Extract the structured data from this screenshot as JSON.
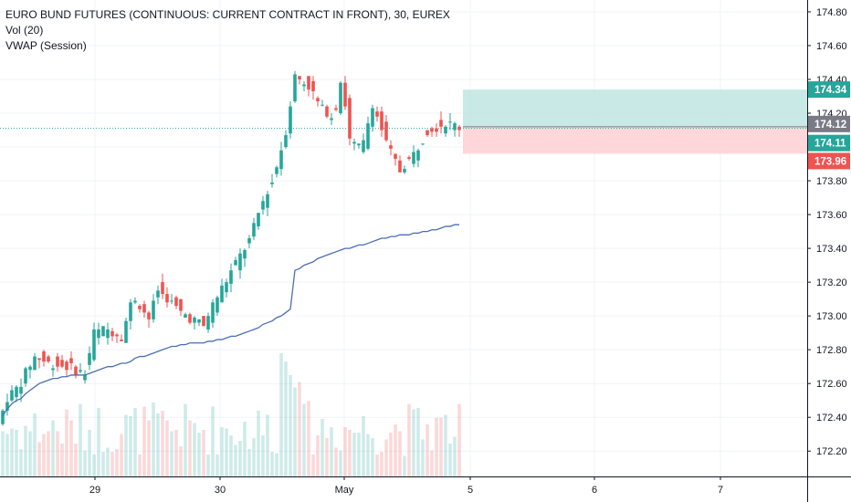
{
  "legend": {
    "title": "EURO BUND FUTURES (CONTINUOUS: CURRENT CONTRACT IN FRONT), 30, EUREX",
    "volume": "Vol (20)",
    "vwap": "VWAP (Session)"
  },
  "colors": {
    "up": "#26a69a",
    "down": "#ef5350",
    "vwap": "#4a6fb4",
    "grid": "#f0f3fa",
    "target_zone": "#b2dfdb",
    "stop_zone": "#ffcdd2",
    "axis_border": "#131722"
  },
  "chart_data": {
    "type": "candlestick",
    "y_axis_ticks": [
      "174.80",
      "174.60",
      "174.40",
      "174.20",
      "174.00",
      "173.80",
      "173.60",
      "173.40",
      "173.20",
      "173.00",
      "172.80",
      "172.60",
      "172.40",
      "172.20"
    ],
    "x_axis_ticks": [
      "29",
      "30",
      "May",
      "5",
      "6",
      "7"
    ],
    "ylim": [
      172.05,
      174.87
    ],
    "grid": true,
    "price_labels": {
      "target": "174.34",
      "entry": "174.12",
      "last": "174.11",
      "stop": "173.96"
    },
    "position": {
      "target": 174.34,
      "entry": 174.12,
      "stop": 173.96
    },
    "last_price": 174.11,
    "candles": [],
    "vwap": []
  }
}
